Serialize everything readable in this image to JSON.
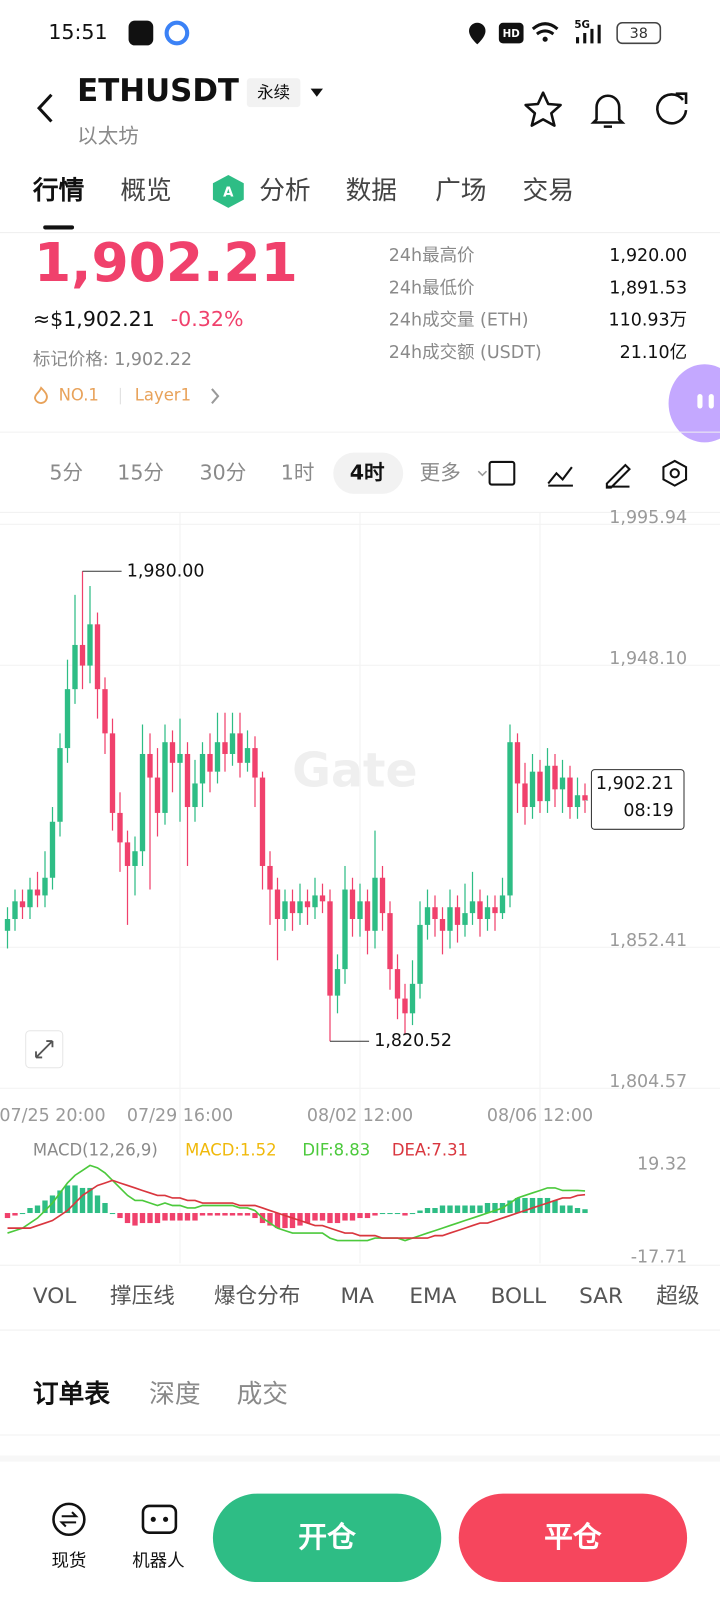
{
  "status_bar": {
    "time": "15:51",
    "battery": "38",
    "network": "5G",
    "hd": "HD"
  },
  "header": {
    "symbol": "ETHUSDT",
    "contract": "永续",
    "name": "以太坊"
  },
  "tabs": [
    "行情",
    "概览",
    "分析",
    "数据",
    "广场",
    "交易"
  ],
  "ticker": {
    "price": "1,902.21",
    "usd_price": "≈$1,902.21",
    "change": "-0.32%",
    "mark_price": "标记价格: 1,902.22",
    "tags": [
      "NO.1",
      "Layer1"
    ],
    "stats": [
      {
        "label": "24h最高价",
        "value": "1,920.00"
      },
      {
        "label": "24h最低价",
        "value": "1,891.53"
      },
      {
        "label": "24h成交量 (ETH)",
        "value": "110.93万"
      },
      {
        "label": "24h成交额 (USDT)",
        "value": "21.10亿"
      }
    ]
  },
  "intervals": [
    "5分",
    "15分",
    "30分",
    "1时",
    "4时",
    "更多"
  ],
  "chart_data": [
    {
      "type": "candlestick",
      "watermark": "Gate",
      "up_color": "#2ebd85",
      "down_color": "#f0416c",
      "xlim": [
        0,
        96
      ],
      "ylim": [
        1800,
        2000
      ],
      "xticks": [
        {
          "value": 1,
          "label": "07/25 20:00"
        },
        {
          "value": 24,
          "label": "07/29 16:00"
        },
        {
          "value": 48,
          "label": "08/02 12:00"
        },
        {
          "value": 72,
          "label": "08/06 12:00"
        }
      ],
      "yticks": [
        {
          "value": 1995.94,
          "label": "1,995.94"
        },
        {
          "value": 1948.1,
          "label": "1,948.10"
        },
        {
          "value": 1852.41,
          "label": "1,852.41"
        },
        {
          "value": 1804.57,
          "label": "1,804.57"
        }
      ],
      "x": [
        1,
        2,
        3,
        4,
        5,
        6,
        7,
        8,
        9,
        10,
        11,
        12,
        13,
        14,
        15,
        16,
        17,
        18,
        19,
        20,
        21,
        22,
        23,
        24,
        25,
        26,
        27,
        28,
        29,
        30,
        31,
        32,
        33,
        34,
        35,
        36,
        37,
        38,
        39,
        40,
        41,
        42,
        43,
        44,
        45,
        46,
        47,
        48,
        49,
        50,
        51,
        52,
        53,
        54,
        55,
        56,
        57,
        58,
        59,
        60,
        61,
        62,
        63,
        64,
        65,
        66,
        67,
        68,
        69,
        70,
        71,
        72,
        73,
        74,
        75,
        76,
        77,
        78
      ],
      "open": [
        1858,
        1862,
        1868,
        1866,
        1872,
        1870,
        1876,
        1895,
        1920,
        1940,
        1955,
        1948,
        1962,
        1940,
        1925,
        1898,
        1888,
        1880,
        1885,
        1918,
        1910,
        1898,
        1922,
        1915,
        1918,
        1900,
        1908,
        1918,
        1912,
        1922,
        1918,
        1925,
        1915,
        1920,
        1910,
        1880,
        1872,
        1862,
        1868,
        1864,
        1868,
        1866,
        1870,
        1868,
        1836,
        1845,
        1872,
        1862,
        1868,
        1858,
        1876,
        1864,
        1845,
        1835,
        1830,
        1840,
        1860,
        1866,
        1862,
        1858,
        1866,
        1860,
        1864,
        1868,
        1862,
        1866,
        1864,
        1870,
        1922,
        1908,
        1900,
        1912,
        1902,
        1914,
        1906,
        1910,
        1900,
        1904
      ],
      "high": [
        1866,
        1872,
        1872,
        1876,
        1878,
        1885,
        1900,
        1925,
        1950,
        1972,
        1980,
        1975,
        1966,
        1944,
        1930,
        1905,
        1892,
        1890,
        1928,
        1925,
        1920,
        1928,
        1926,
        1930,
        1922,
        1916,
        1922,
        1925,
        1932,
        1932,
        1932,
        1932,
        1926,
        1924,
        1912,
        1885,
        1876,
        1872,
        1872,
        1874,
        1872,
        1876,
        1874,
        1872,
        1850,
        1880,
        1876,
        1874,
        1872,
        1892,
        1880,
        1868,
        1850,
        1840,
        1848,
        1868,
        1872,
        1870,
        1866,
        1872,
        1870,
        1874,
        1878,
        1872,
        1870,
        1870,
        1876,
        1928,
        1925,
        1915,
        1918,
        1916,
        1920,
        1918,
        1916,
        1914,
        1910,
        1908
      ],
      "low": [
        1852,
        1858,
        1862,
        1862,
        1866,
        1866,
        1872,
        1890,
        1915,
        1935,
        1940,
        1942,
        1930,
        1918,
        1892,
        1878,
        1860,
        1870,
        1880,
        1872,
        1890,
        1894,
        1905,
        1895,
        1880,
        1895,
        1900,
        1905,
        1908,
        1912,
        1914,
        1910,
        1912,
        1900,
        1872,
        1860,
        1848,
        1858,
        1858,
        1860,
        1860,
        1862,
        1864,
        1820.52,
        1830,
        1840,
        1856,
        1856,
        1850,
        1852,
        1858,
        1838,
        1828,
        1823,
        1826,
        1835,
        1855,
        1856,
        1850,
        1852,
        1854,
        1856,
        1860,
        1856,
        1858,
        1858,
        1862,
        1866,
        1898,
        1894,
        1896,
        1898,
        1898,
        1900,
        1898,
        1896,
        1896,
        1898
      ],
      "close": [
        1862,
        1868,
        1866,
        1872,
        1870,
        1876,
        1895,
        1920,
        1940,
        1955,
        1948,
        1962,
        1940,
        1925,
        1898,
        1888,
        1880,
        1885,
        1918,
        1910,
        1898,
        1922,
        1915,
        1918,
        1900,
        1908,
        1918,
        1912,
        1922,
        1918,
        1925,
        1915,
        1920,
        1910,
        1880,
        1872,
        1862,
        1868,
        1864,
        1868,
        1866,
        1870,
        1868,
        1836,
        1845,
        1872,
        1862,
        1868,
        1858,
        1876,
        1864,
        1845,
        1835,
        1830,
        1840,
        1860,
        1866,
        1862,
        1858,
        1866,
        1860,
        1864,
        1868,
        1862,
        1866,
        1864,
        1870,
        1922,
        1908,
        1900,
        1912,
        1902,
        1914,
        1906,
        1910,
        1900,
        1904,
        1902.21
      ],
      "annotations": [
        {
          "x": 11,
          "value": 1980,
          "label": "1,980.00"
        },
        {
          "x": 44,
          "value": 1820.52,
          "label": "1,820.52"
        }
      ],
      "current": {
        "value": 1902.21,
        "label": "1,902.21",
        "countdown": "08:19"
      }
    },
    {
      "type": "macd",
      "title": "MACD(12,26,9)",
      "xlim": [
        0,
        96
      ],
      "ylim": [
        -20,
        21
      ],
      "yticks": [
        19.32,
        -17.71
      ],
      "series": [
        {
          "name": "MACD:1.52",
          "color": "#f0b90b",
          "up_color": "#2ebd85",
          "down_color": "#f0416c",
          "values": [
            -2,
            -1,
            0,
            2,
            3,
            5,
            7,
            9,
            11,
            11,
            10,
            10,
            7,
            4,
            0,
            -2,
            -4,
            -5,
            -4,
            -4,
            -4,
            -3,
            -3,
            -3,
            -3,
            -3,
            -1,
            -1,
            -1,
            -1,
            -1,
            -1,
            -1,
            -2,
            -4,
            -5,
            -6,
            -6,
            -6,
            -5,
            -4,
            -3,
            -3,
            -4,
            -4,
            -3,
            -3,
            -2,
            -2,
            -1,
            0,
            0,
            0,
            -1,
            0,
            1,
            2,
            2,
            3,
            3,
            3,
            3,
            3,
            3,
            4,
            4,
            4,
            5,
            6,
            6,
            6,
            6,
            6,
            5,
            3,
            3,
            2,
            1.52
          ]
        },
        {
          "name": "DIF:8.83",
          "color": "#4cc93c",
          "values": [
            -8,
            -7,
            -6,
            -4,
            -2,
            1,
            4,
            8,
            12,
            15,
            17,
            19,
            18,
            16,
            13,
            10,
            7,
            5,
            5,
            4,
            3,
            4,
            3,
            3,
            2,
            2,
            3,
            3,
            3,
            3,
            3,
            2,
            2,
            1,
            -2,
            -4,
            -6,
            -7,
            -8,
            -8,
            -8,
            -8,
            -8,
            -10,
            -11,
            -11,
            -11,
            -11,
            -11,
            -10,
            -10,
            -10,
            -10,
            -11,
            -10,
            -9,
            -8,
            -7,
            -6,
            -5,
            -4,
            -3,
            -2,
            -1,
            0,
            1,
            2,
            4,
            6,
            7,
            8,
            9,
            10,
            10,
            9,
            9,
            9,
            8.83
          ]
        },
        {
          "name": "DEA:7.31",
          "color": "#d9363e",
          "values": [
            -6,
            -6,
            -6,
            -6,
            -5,
            -4,
            -3,
            -1,
            1,
            4,
            7,
            9,
            11,
            12,
            13,
            12,
            11,
            10,
            9,
            8,
            7,
            7,
            6,
            6,
            5,
            5,
            4,
            4,
            4,
            4,
            4,
            3,
            3,
            3,
            2,
            1,
            0,
            -1,
            -2,
            -3,
            -4,
            -5,
            -5,
            -6,
            -7,
            -8,
            -8,
            -9,
            -9,
            -9,
            -10,
            -10,
            -10,
            -10,
            -10,
            -10,
            -10,
            -9,
            -9,
            -8,
            -7,
            -6,
            -5,
            -4,
            -4,
            -3,
            -2,
            -1,
            0,
            1,
            2,
            3,
            4,
            5,
            6,
            6,
            7,
            7.31
          ]
        }
      ]
    }
  ],
  "indicators": [
    "VOL",
    "撑压线",
    "爆仓分布",
    "MA",
    "EMA",
    "BOLL",
    "SAR",
    "超级"
  ],
  "order_tabs": [
    "订单表",
    "深度",
    "成交"
  ],
  "bottom_bar": {
    "spot": "现货",
    "bot": "机器人",
    "open": "开仓",
    "close": "平仓"
  }
}
